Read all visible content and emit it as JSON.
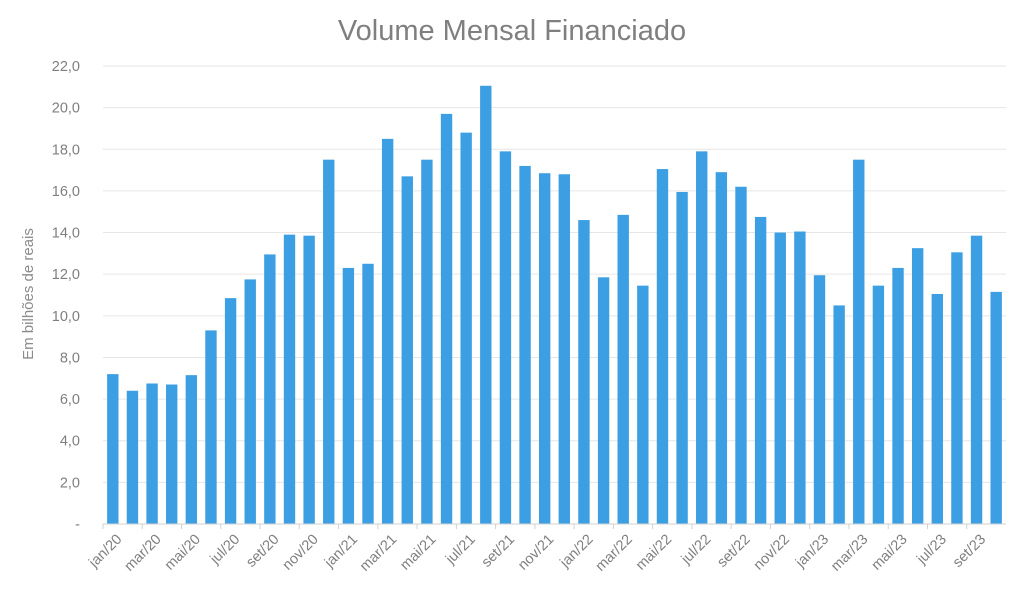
{
  "chart_data": {
    "type": "bar",
    "title": "Volume Mensal Financiado",
    "xlabel": "",
    "ylabel": "Em bilhões de reais",
    "ylim": [
      0,
      22
    ],
    "y_ticks": [
      "-",
      "2,0",
      "4,0",
      "6,0",
      "8,0",
      "10,0",
      "12,0",
      "14,0",
      "16,0",
      "18,0",
      "20,0",
      "22,0"
    ],
    "grid": true,
    "legend": "none",
    "bar_color": "#3d9fe3",
    "categories": [
      "jan/20",
      "fev/20",
      "mar/20",
      "abr/20",
      "mai/20",
      "jun/20",
      "jul/20",
      "ago/20",
      "set/20",
      "out/20",
      "nov/20",
      "dez/20",
      "jan/21",
      "fev/21",
      "mar/21",
      "abr/21",
      "mai/21",
      "jun/21",
      "jul/21",
      "ago/21",
      "set/21",
      "out/21",
      "nov/21",
      "dez/21",
      "jan/22",
      "fev/22",
      "mar/22",
      "abr/22",
      "mai/22",
      "jun/22",
      "jul/22",
      "ago/22",
      "set/22",
      "out/22",
      "nov/22",
      "dez/22",
      "jan/23",
      "fev/23",
      "mar/23",
      "abr/23",
      "mai/23",
      "jun/23",
      "jul/23",
      "ago/23",
      "set/23",
      "out/23"
    ],
    "visible_x_labels": [
      "jan/20",
      "mar/20",
      "mai/20",
      "jul/20",
      "set/20",
      "nov/20",
      "jan/21",
      "mar/21",
      "mai/21",
      "jul/21",
      "set/21",
      "nov/21",
      "jan/22",
      "mar/22",
      "mai/22",
      "jul/22",
      "set/22",
      "nov/22",
      "jan/23",
      "mar/23",
      "mai/23",
      "jul/23",
      "set/23"
    ],
    "values": [
      7.2,
      6.4,
      6.75,
      6.7,
      7.15,
      9.3,
      10.85,
      11.75,
      12.95,
      13.9,
      13.85,
      17.5,
      12.3,
      12.5,
      18.5,
      16.7,
      17.5,
      19.7,
      18.8,
      21.05,
      17.9,
      17.2,
      16.85,
      16.8,
      14.6,
      11.85,
      14.85,
      11.45,
      17.05,
      15.95,
      17.9,
      16.9,
      16.2,
      14.75,
      14.0,
      14.05,
      11.95,
      10.5,
      17.5,
      11.45,
      12.3,
      13.25,
      11.05,
      13.05,
      13.85,
      11.15
    ]
  }
}
